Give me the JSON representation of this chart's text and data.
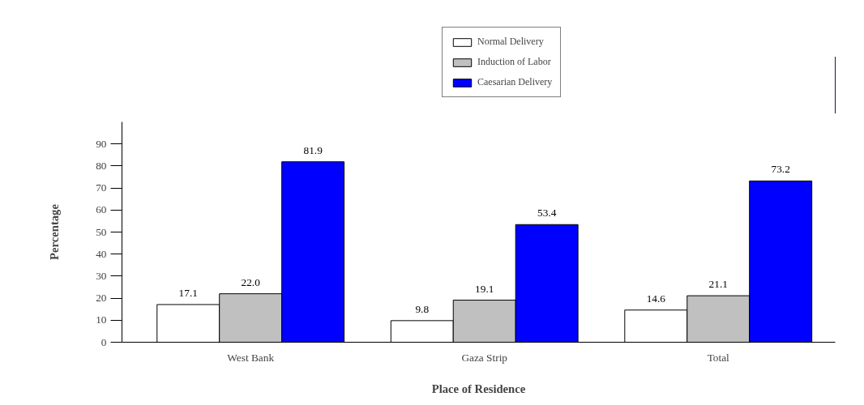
{
  "chart_data": {
    "type": "bar",
    "xlabel": "Place of Residence",
    "ylabel": "Percentage",
    "categories": [
      "West Bank",
      "Gaza Strip",
      "Total"
    ],
    "series": [
      {
        "name": "Normal Delivery",
        "color": "#ffffff",
        "values": [
          17.1,
          9.8,
          14.6
        ],
        "value_labels": [
          "17.1",
          "9.8",
          "14.6"
        ]
      },
      {
        "name": "Induction of Labor",
        "color": "#c0c0c0",
        "values": [
          22.0,
          19.1,
          21.1
        ],
        "value_labels": [
          "22.0",
          "19.1",
          "21.1"
        ]
      },
      {
        "name": "Caesarian Delivery",
        "color": "#0000ff",
        "values": [
          81.9,
          53.4,
          73.2
        ],
        "value_labels": [
          "81.9",
          "53.4",
          "73.2"
        ]
      }
    ],
    "ylim": [
      0,
      100
    ],
    "yticks": [
      0,
      10,
      20,
      30,
      40,
      50,
      60,
      70,
      80,
      90
    ],
    "grid": false,
    "legend": "top right"
  }
}
